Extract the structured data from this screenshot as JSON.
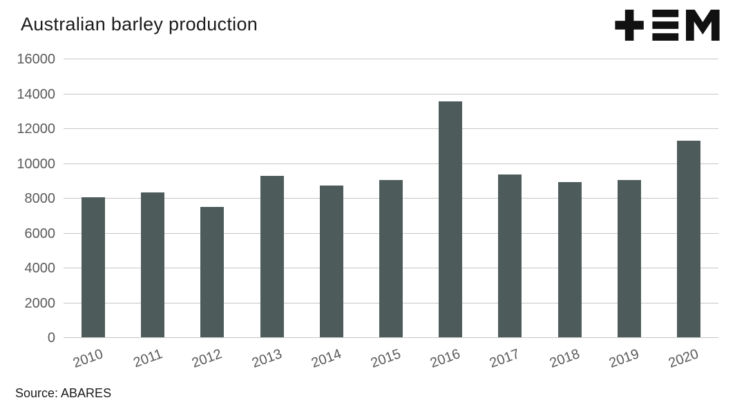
{
  "title": "Australian barley production",
  "source_caption": "Source: ABARES",
  "logo": {
    "name": "tem-logo"
  },
  "colors": {
    "bar": "#4d5c5b",
    "grid": "#c6c6c6",
    "axis_text": "#595959",
    "text": "#1a1a1a",
    "logo": "#111111",
    "background": "#ffffff"
  },
  "chart_data": {
    "type": "bar",
    "title": "Australian barley production",
    "categories": [
      "2010",
      "2011",
      "2012",
      "2013",
      "2014",
      "2015",
      "2016",
      "2017",
      "2018",
      "2019",
      "2020"
    ],
    "values": [
      8050,
      8300,
      7500,
      9250,
      8700,
      9050,
      13550,
      9350,
      8900,
      9050,
      11300
    ],
    "xlabel": "",
    "ylabel": "",
    "ylim": [
      0,
      16000
    ],
    "yticks": [
      0,
      2000,
      4000,
      6000,
      8000,
      10000,
      12000,
      14000,
      16000
    ],
    "grid": true,
    "legend_position": "none",
    "source": "Source: ABARES"
  }
}
